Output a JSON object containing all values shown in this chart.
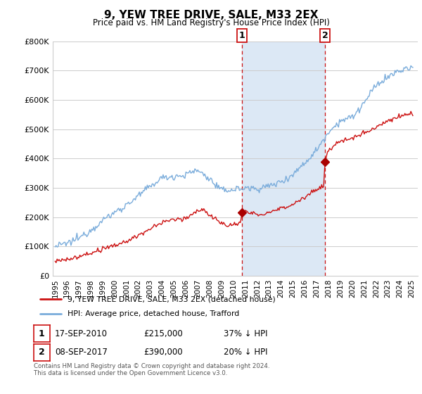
{
  "title": "9, YEW TREE DRIVE, SALE, M33 2EX",
  "subtitle": "Price paid vs. HM Land Registry's House Price Index (HPI)",
  "footer": "Contains HM Land Registry data © Crown copyright and database right 2024.\nThis data is licensed under the Open Government Licence v3.0.",
  "legend_line1": "9, YEW TREE DRIVE, SALE, M33 2EX (detached house)",
  "legend_line2": "HPI: Average price, detached house, Trafford",
  "annotation1_date": "17-SEP-2010",
  "annotation1_price": "£215,000",
  "annotation1_hpi": "37% ↓ HPI",
  "annotation2_date": "08-SEP-2017",
  "annotation2_price": "£390,000",
  "annotation2_hpi": "20% ↓ HPI",
  "transaction1_x": 2010.71,
  "transaction1_y": 215000,
  "transaction2_x": 2017.69,
  "transaction2_y": 390000,
  "vline1_x": 2010.71,
  "vline2_x": 2017.69,
  "shade_x1": 2010.71,
  "shade_x2": 2017.69,
  "ylim": [
    0,
    800000
  ],
  "xlim": [
    1994.8,
    2025.5
  ],
  "yticks": [
    0,
    100000,
    200000,
    300000,
    400000,
    500000,
    600000,
    700000,
    800000
  ],
  "ytick_labels": [
    "£0",
    "£100K",
    "£200K",
    "£300K",
    "£400K",
    "£500K",
    "£600K",
    "£700K",
    "£800K"
  ],
  "xticks": [
    1995,
    1996,
    1997,
    1998,
    1999,
    2000,
    2001,
    2002,
    2003,
    2004,
    2005,
    2006,
    2007,
    2008,
    2009,
    2010,
    2011,
    2012,
    2013,
    2014,
    2015,
    2016,
    2017,
    2018,
    2019,
    2020,
    2021,
    2022,
    2023,
    2024,
    2025
  ],
  "hpi_color": "#7aacdb",
  "price_color": "#cc1111",
  "vline_color": "#cc1111",
  "shade_color": "#dce8f5",
  "marker_color": "#aa0000",
  "grid_color": "#cccccc",
  "bg_color": "#f5f8ff"
}
